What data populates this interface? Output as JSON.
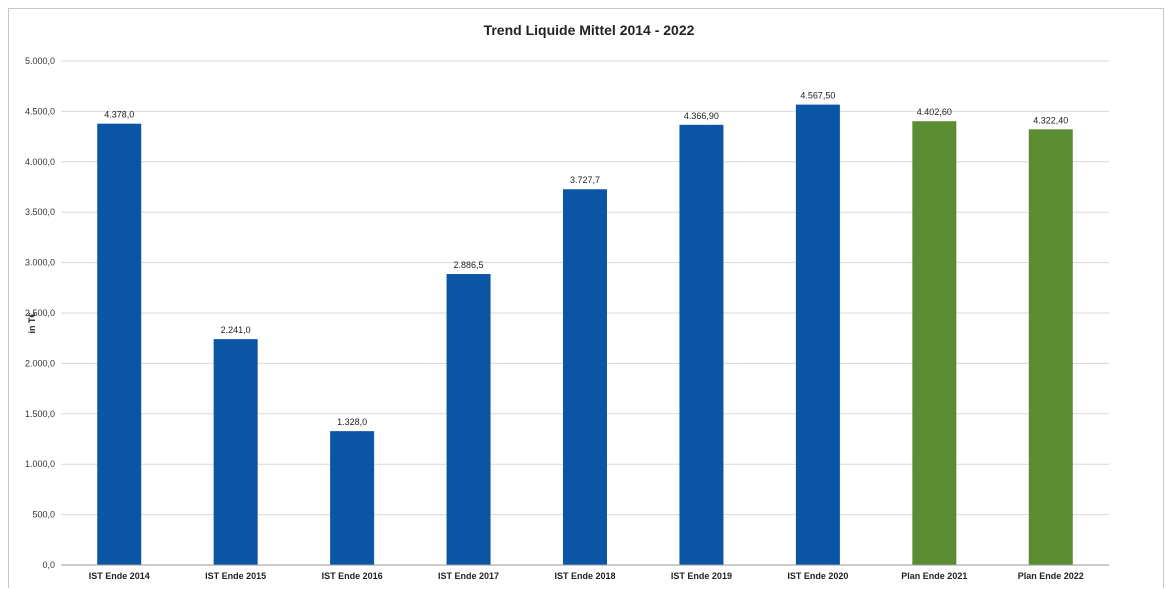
{
  "chart_data": {
    "type": "bar",
    "title": "Trend Liquide Mittel 2014 - 2022",
    "xlabel": "",
    "ylabel": "in T€",
    "ylim": [
      0,
      5000
    ],
    "ytick_values": [
      0,
      500,
      1000,
      1500,
      2000,
      2500,
      3000,
      3500,
      4000,
      4500,
      5000
    ],
    "ytick_labels": [
      "0,0",
      "500,0",
      "1.000,0",
      "1.500,0",
      "2.000,0",
      "2.500,0",
      "3.000,0",
      "3.500,0",
      "4.000,0",
      "4.500,0",
      "5.000,0"
    ],
    "grid": true,
    "legend": "none",
    "categories": [
      "IST Ende 2014",
      "IST Ende 2015",
      "IST Ende 2016",
      "IST Ende 2017",
      "IST Ende 2018",
      "IST Ende 2019",
      "IST Ende 2020",
      "Plan Ende 2021",
      "Plan Ende 2022"
    ],
    "values": [
      4378.0,
      2241.0,
      1328.0,
      2886.5,
      3727.7,
      4366.9,
      4567.5,
      4402.6,
      4322.4
    ],
    "value_labels": [
      "4.378,0",
      "2.241,0",
      "1.328,0",
      "2.886,5",
      "3.727,7",
      "4.366,90",
      "4.567,50",
      "4.402,60",
      "4.322,40"
    ],
    "bar_colors": [
      "#0b56a4",
      "#0b56a4",
      "#0b56a4",
      "#0b56a4",
      "#0b56a4",
      "#0b56a4",
      "#0b56a4",
      "#5b8c32",
      "#5b8c32"
    ]
  }
}
